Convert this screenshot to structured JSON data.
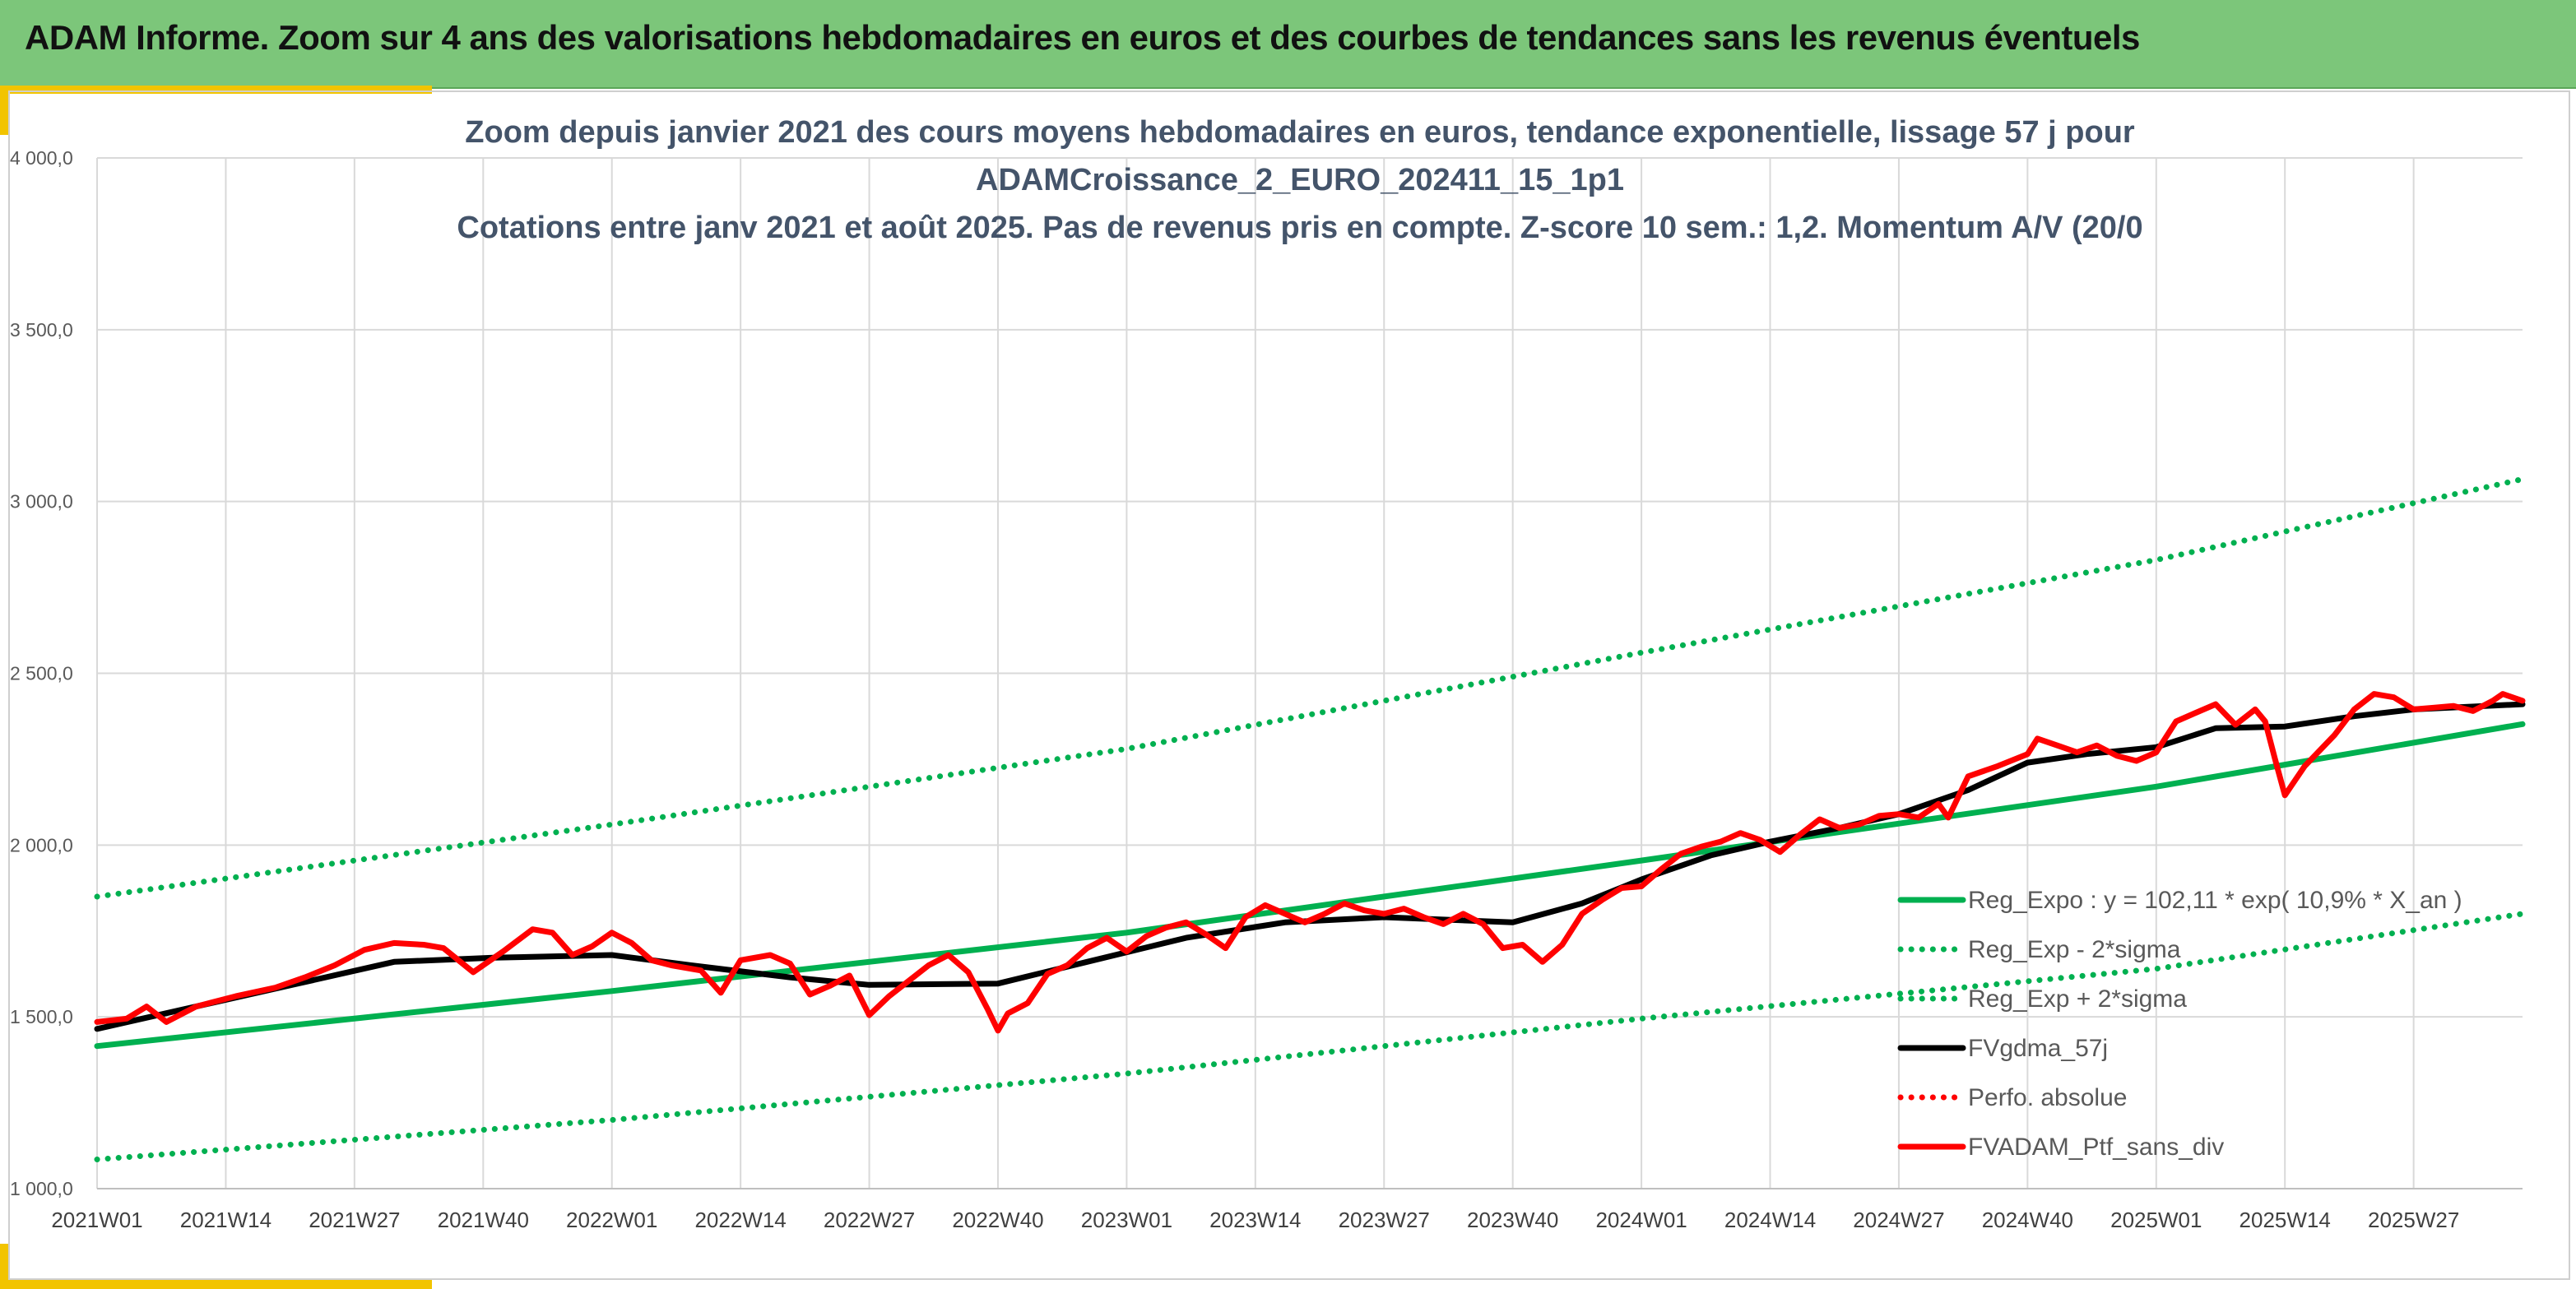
{
  "header": {
    "title": "ADAM Informe. Zoom sur 4 ans des valorisations hebdomadaires en euros et des courbes de tendances sans les revenus éventuels"
  },
  "chart_data": {
    "type": "line",
    "title_lines": [
      "Zoom depuis janvier 2021 des cours moyens hebdomadaires en euros, tendance exponentielle, lissage 57 j pour",
      "ADAMCroissance_2_EURO_202411_15_1p1",
      "Cotations entre janv 2021 et août 2025. Pas de revenus pris en compte. Z-score 10 sem.: 1,2. Momentum A/V (20/0"
    ],
    "ylim": [
      1000,
      4000
    ],
    "y_ticks": [
      1000,
      1500,
      2000,
      2500,
      3000,
      3500,
      4000
    ],
    "y_tick_labels": [
      "1 000,0",
      "1 500,0",
      "2 000,0",
      "2 500,0",
      "3 000,0",
      "3 500,0",
      "4 000,0"
    ],
    "x_tick_labels": [
      "2021W01",
      "2021W14",
      "2021W27",
      "2021W40",
      "2022W01",
      "2022W14",
      "2022W27",
      "2022W40",
      "2023W01",
      "2023W14",
      "2023W27",
      "2023W40",
      "2024W01",
      "2024W14",
      "2024W27",
      "2024W40",
      "2025W01",
      "2025W14",
      "2025W27"
    ],
    "x_tick_weeks": [
      0,
      13,
      26,
      39,
      52,
      65,
      78,
      91,
      104,
      117,
      130,
      143,
      156,
      169,
      182,
      195,
      208,
      221,
      234
    ],
    "x_range_weeks": [
      0,
      245
    ],
    "grid": true,
    "legend_position": "bottom-right",
    "series": [
      {
        "name": "Reg_Expo : y = 102,11 * exp( 10,9% *  X_an )",
        "color": "#00b050",
        "style": "solid",
        "points": [
          [
            0,
            1415
          ],
          [
            52,
            1575
          ],
          [
            104,
            1745
          ],
          [
            156,
            1955
          ],
          [
            208,
            2170
          ],
          [
            245,
            2352
          ]
        ]
      },
      {
        "name": "Reg_Exp - 2*sigma",
        "color": "#00b050",
        "style": "dotted",
        "points": [
          [
            0,
            1085
          ],
          [
            52,
            1200
          ],
          [
            104,
            1335
          ],
          [
            156,
            1495
          ],
          [
            208,
            1640
          ],
          [
            245,
            1800
          ]
        ]
      },
      {
        "name": "Reg_Exp + 2*sigma",
        "color": "#00b050",
        "style": "dotted",
        "points": [
          [
            0,
            1850
          ],
          [
            52,
            2060
          ],
          [
            104,
            2280
          ],
          [
            156,
            2560
          ],
          [
            208,
            2830
          ],
          [
            245,
            3065
          ]
        ]
      },
      {
        "name": "FVgdma_57j",
        "color": "#000000",
        "style": "solid",
        "points": [
          [
            0,
            1465
          ],
          [
            10,
            1530
          ],
          [
            20,
            1595
          ],
          [
            30,
            1660
          ],
          [
            40,
            1672
          ],
          [
            52,
            1680
          ],
          [
            60,
            1650
          ],
          [
            70,
            1615
          ],
          [
            78,
            1593
          ],
          [
            91,
            1597
          ],
          [
            100,
            1660
          ],
          [
            110,
            1730
          ],
          [
            120,
            1775
          ],
          [
            130,
            1790
          ],
          [
            143,
            1775
          ],
          [
            150,
            1830
          ],
          [
            156,
            1900
          ],
          [
            163,
            1970
          ],
          [
            169,
            2010
          ],
          [
            176,
            2050
          ],
          [
            182,
            2090
          ],
          [
            189,
            2160
          ],
          [
            195,
            2240
          ],
          [
            201,
            2265
          ],
          [
            208,
            2285
          ],
          [
            214,
            2340
          ],
          [
            221,
            2345
          ],
          [
            228,
            2375
          ],
          [
            234,
            2395
          ],
          [
            245,
            2410
          ]
        ]
      },
      {
        "name": "Perfo. absolue",
        "color": "#ff0000",
        "style": "dotted",
        "points": []
      },
      {
        "name": "FVADAM_Ptf_sans_div",
        "color": "#ff0000",
        "style": "solid",
        "points": [
          [
            0,
            1485
          ],
          [
            3,
            1495
          ],
          [
            5,
            1530
          ],
          [
            7,
            1485
          ],
          [
            10,
            1530
          ],
          [
            14,
            1560
          ],
          [
            18,
            1585
          ],
          [
            21,
            1615
          ],
          [
            24,
            1650
          ],
          [
            27,
            1695
          ],
          [
            30,
            1715
          ],
          [
            33,
            1710
          ],
          [
            35,
            1700
          ],
          [
            38,
            1630
          ],
          [
            41,
            1690
          ],
          [
            44,
            1755
          ],
          [
            46,
            1745
          ],
          [
            48,
            1680
          ],
          [
            50,
            1705
          ],
          [
            52,
            1745
          ],
          [
            54,
            1715
          ],
          [
            56,
            1665
          ],
          [
            58,
            1650
          ],
          [
            61,
            1635
          ],
          [
            63,
            1570
          ],
          [
            65,
            1665
          ],
          [
            68,
            1680
          ],
          [
            70,
            1655
          ],
          [
            72,
            1565
          ],
          [
            74,
            1590
          ],
          [
            76,
            1620
          ],
          [
            78,
            1505
          ],
          [
            80,
            1560
          ],
          [
            82,
            1605
          ],
          [
            84,
            1650
          ],
          [
            86,
            1680
          ],
          [
            88,
            1630
          ],
          [
            90,
            1520
          ],
          [
            91,
            1460
          ],
          [
            92,
            1510
          ],
          [
            94,
            1540
          ],
          [
            96,
            1625
          ],
          [
            98,
            1650
          ],
          [
            100,
            1700
          ],
          [
            102,
            1730
          ],
          [
            104,
            1690
          ],
          [
            106,
            1735
          ],
          [
            108,
            1760
          ],
          [
            110,
            1775
          ],
          [
            112,
            1740
          ],
          [
            114,
            1700
          ],
          [
            116,
            1790
          ],
          [
            118,
            1825
          ],
          [
            120,
            1800
          ],
          [
            122,
            1775
          ],
          [
            124,
            1800
          ],
          [
            126,
            1830
          ],
          [
            128,
            1810
          ],
          [
            130,
            1800
          ],
          [
            132,
            1815
          ],
          [
            134,
            1790
          ],
          [
            136,
            1770
          ],
          [
            138,
            1800
          ],
          [
            140,
            1770
          ],
          [
            142,
            1700
          ],
          [
            144,
            1710
          ],
          [
            146,
            1660
          ],
          [
            148,
            1710
          ],
          [
            150,
            1800
          ],
          [
            152,
            1840
          ],
          [
            154,
            1875
          ],
          [
            156,
            1880
          ],
          [
            158,
            1930
          ],
          [
            160,
            1975
          ],
          [
            162,
            1995
          ],
          [
            164,
            2010
          ],
          [
            166,
            2035
          ],
          [
            168,
            2015
          ],
          [
            170,
            1980
          ],
          [
            172,
            2030
          ],
          [
            174,
            2075
          ],
          [
            176,
            2050
          ],
          [
            178,
            2060
          ],
          [
            180,
            2085
          ],
          [
            182,
            2090
          ],
          [
            184,
            2080
          ],
          [
            186,
            2120
          ],
          [
            187,
            2080
          ],
          [
            189,
            2200
          ],
          [
            192,
            2230
          ],
          [
            195,
            2265
          ],
          [
            196,
            2310
          ],
          [
            198,
            2290
          ],
          [
            200,
            2270
          ],
          [
            202,
            2290
          ],
          [
            204,
            2260
          ],
          [
            206,
            2245
          ],
          [
            208,
            2270
          ],
          [
            210,
            2360
          ],
          [
            212,
            2385
          ],
          [
            214,
            2410
          ],
          [
            216,
            2350
          ],
          [
            218,
            2395
          ],
          [
            219,
            2360
          ],
          [
            220,
            2250
          ],
          [
            221,
            2145
          ],
          [
            223,
            2230
          ],
          [
            226,
            2320
          ],
          [
            228,
            2395
          ],
          [
            230,
            2440
          ],
          [
            232,
            2430
          ],
          [
            234,
            2395
          ],
          [
            236,
            2400
          ],
          [
            238,
            2405
          ],
          [
            240,
            2390
          ],
          [
            242,
            2420
          ],
          [
            243,
            2440
          ],
          [
            245,
            2420
          ]
        ]
      }
    ]
  }
}
